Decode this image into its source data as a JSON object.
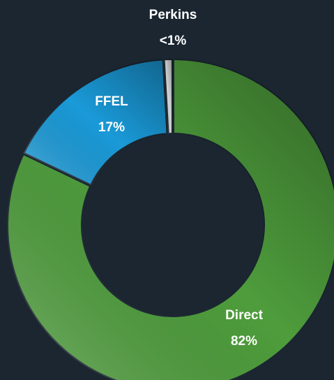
{
  "chart_data": {
    "type": "donut",
    "categories": [
      "Direct",
      "FFEL",
      "Perkins"
    ],
    "values": [
      82,
      17,
      0.9
    ],
    "value_labels": [
      "82%",
      "17%",
      "<1%"
    ],
    "colors": [
      "#4e9d3c",
      "#1a9ad8",
      "#d0d3d4"
    ]
  }
}
